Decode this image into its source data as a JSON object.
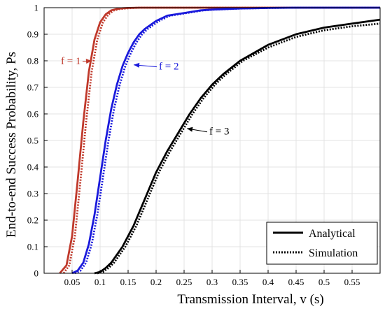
{
  "chart_data": {
    "type": "line",
    "xlabel": "Transmission Interval, v (s)",
    "ylabel": "End-to-end Success Probability, Ps",
    "xlim": [
      0,
      0.6
    ],
    "ylim": [
      0,
      1
    ],
    "xticks": [
      0.05,
      0.1,
      0.15,
      0.2,
      0.25,
      0.3,
      0.35,
      0.4,
      0.45,
      0.5,
      0.55
    ],
    "xtick_labels": [
      "0.05",
      "0.1",
      "0.15",
      "0.2",
      "0.25",
      "0.3",
      "0.35",
      "0.4",
      "0.45",
      "0.5",
      "0.55"
    ],
    "yticks": [
      0,
      0.1,
      0.2,
      0.3,
      0.4,
      0.5,
      0.6,
      0.7,
      0.8,
      0.9,
      1
    ],
    "ytick_labels": [
      "0",
      "0.1",
      "0.2",
      "0.3",
      "0.4",
      "0.5",
      "0.6",
      "0.7",
      "0.8",
      "0.9",
      "1"
    ],
    "grid": true,
    "legend": {
      "position": "bottom-right",
      "entries": [
        {
          "label": "Analytical",
          "style": "solid"
        },
        {
          "label": "Simulation",
          "style": "dotted"
        }
      ]
    },
    "series": [
      {
        "group": "f = 1",
        "kind": "Analytical",
        "color": "#c0392b",
        "x": [
          0.028,
          0.04,
          0.05,
          0.06,
          0.07,
          0.08,
          0.09,
          0.1,
          0.11,
          0.12,
          0.13,
          0.14,
          0.15,
          0.17,
          0.2,
          0.25,
          0.6
        ],
        "y": [
          0,
          0.03,
          0.14,
          0.35,
          0.57,
          0.76,
          0.88,
          0.945,
          0.975,
          0.99,
          0.995,
          0.998,
          0.999,
          1,
          1,
          1,
          1
        ]
      },
      {
        "group": "f = 1",
        "kind": "Simulation",
        "color": "#c0392b",
        "x": [
          0.035,
          0.045,
          0.055,
          0.065,
          0.075,
          0.085,
          0.095,
          0.105,
          0.115,
          0.125,
          0.135,
          0.15,
          0.17,
          0.2,
          0.25,
          0.6
        ],
        "y": [
          0,
          0.03,
          0.14,
          0.35,
          0.57,
          0.76,
          0.88,
          0.945,
          0.975,
          0.99,
          0.995,
          0.998,
          1,
          1,
          1,
          1
        ]
      },
      {
        "group": "f = 2",
        "kind": "Analytical",
        "color": "#1a1adc",
        "x": [
          0.05,
          0.06,
          0.07,
          0.08,
          0.09,
          0.1,
          0.11,
          0.12,
          0.13,
          0.14,
          0.15,
          0.16,
          0.17,
          0.18,
          0.2,
          0.22,
          0.25,
          0.28,
          0.3,
          0.35,
          0.4,
          0.45,
          0.5,
          0.6
        ],
        "y": [
          0,
          0.01,
          0.04,
          0.11,
          0.22,
          0.36,
          0.5,
          0.62,
          0.71,
          0.78,
          0.83,
          0.87,
          0.9,
          0.92,
          0.95,
          0.97,
          0.98,
          0.99,
          0.993,
          0.997,
          0.999,
          1,
          1,
          1
        ]
      },
      {
        "group": "f = 2",
        "kind": "Simulation",
        "color": "#1a1adc",
        "x": [
          0.055,
          0.065,
          0.075,
          0.085,
          0.095,
          0.105,
          0.115,
          0.125,
          0.135,
          0.145,
          0.155,
          0.165,
          0.175,
          0.185,
          0.205,
          0.225,
          0.255,
          0.285,
          0.305,
          0.355,
          0.405,
          0.45,
          0.5,
          0.6
        ],
        "y": [
          0,
          0.01,
          0.04,
          0.11,
          0.22,
          0.36,
          0.5,
          0.62,
          0.71,
          0.78,
          0.83,
          0.87,
          0.9,
          0.92,
          0.95,
          0.97,
          0.98,
          0.99,
          0.993,
          0.997,
          0.999,
          1,
          1,
          1
        ]
      },
      {
        "group": "f = 3",
        "kind": "Analytical",
        "color": "#000000",
        "x": [
          0.09,
          0.1,
          0.11,
          0.12,
          0.13,
          0.14,
          0.15,
          0.16,
          0.17,
          0.18,
          0.19,
          0.2,
          0.22,
          0.24,
          0.26,
          0.28,
          0.3,
          0.32,
          0.35,
          0.4,
          0.45,
          0.5,
          0.55,
          0.6
        ],
        "y": [
          0,
          0.005,
          0.02,
          0.04,
          0.07,
          0.1,
          0.14,
          0.18,
          0.23,
          0.28,
          0.33,
          0.38,
          0.46,
          0.53,
          0.6,
          0.66,
          0.71,
          0.75,
          0.8,
          0.86,
          0.9,
          0.925,
          0.94,
          0.955
        ]
      },
      {
        "group": "f = 3",
        "kind": "Simulation",
        "color": "#000000",
        "x": [
          0.095,
          0.105,
          0.115,
          0.125,
          0.135,
          0.145,
          0.155,
          0.165,
          0.175,
          0.185,
          0.195,
          0.205,
          0.225,
          0.245,
          0.265,
          0.285,
          0.305,
          0.325,
          0.355,
          0.4,
          0.45,
          0.5,
          0.55,
          0.6
        ],
        "y": [
          0,
          0.005,
          0.02,
          0.04,
          0.07,
          0.1,
          0.14,
          0.18,
          0.23,
          0.28,
          0.33,
          0.38,
          0.46,
          0.53,
          0.6,
          0.66,
          0.71,
          0.75,
          0.8,
          0.85,
          0.89,
          0.915,
          0.93,
          0.94
        ]
      }
    ],
    "annotations": [
      {
        "text": "f = 1",
        "color": "#c0392b",
        "point": [
          0.085,
          0.8
        ],
        "label_at": [
          0.03,
          0.8
        ]
      },
      {
        "text": "f = 2",
        "color": "#1a1adc",
        "point": [
          0.16,
          0.785
        ],
        "label_at": [
          0.205,
          0.78
        ]
      },
      {
        "text": "f = 3",
        "color": "#000000",
        "point": [
          0.255,
          0.545
        ],
        "label_at": [
          0.295,
          0.535
        ]
      }
    ]
  }
}
